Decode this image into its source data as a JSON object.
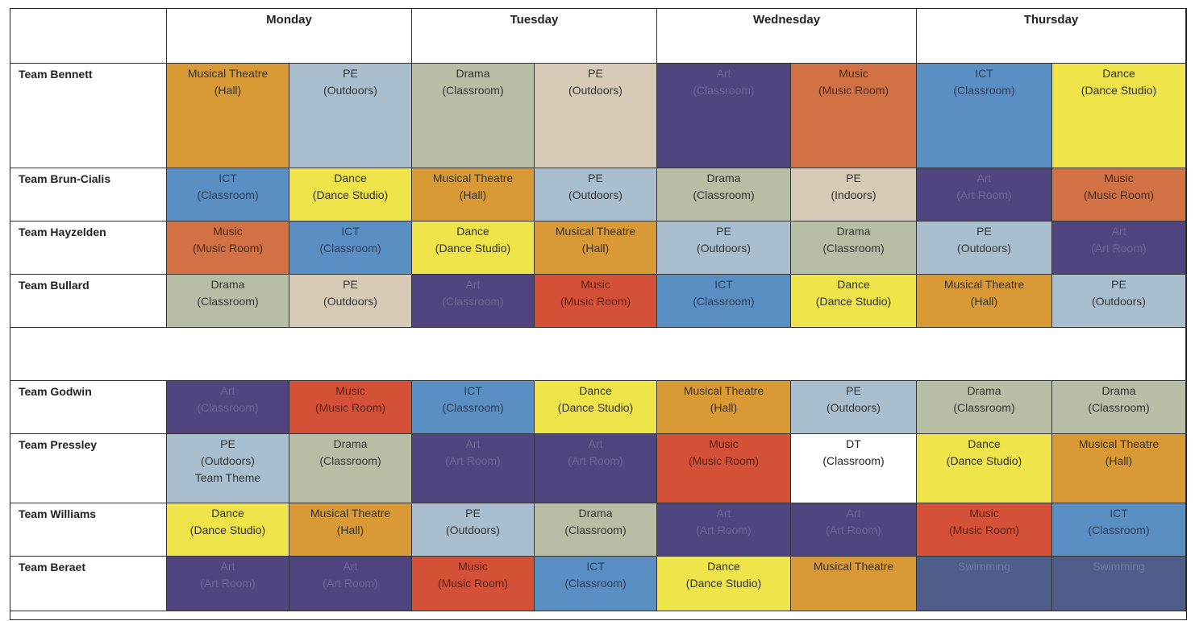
{
  "days": [
    "Monday",
    "Tuesday",
    "Wednesday",
    "Thursday"
  ],
  "teams": [
    {
      "name": "Team Bennett",
      "lessons": [
        {
          "lines": [
            "Musical Theatre",
            "(Hall)"
          ],
          "color": "yellow-orange"
        },
        {
          "lines": [
            "PE",
            "(Outdoors)"
          ],
          "color": "light-blue"
        },
        {
          "lines": [
            "Drama",
            "(Classroom)"
          ],
          "color": "sage"
        },
        {
          "lines": [
            "PE",
            "(Outdoors)"
          ],
          "color": "tan"
        },
        {
          "lines": [
            "Art",
            "(Classroom)"
          ],
          "color": "purple"
        },
        {
          "lines": [
            "Music",
            "(Music Room)"
          ],
          "color": "rust"
        },
        {
          "lines": [
            "ICT",
            "(Classroom)"
          ],
          "color": "blue"
        },
        {
          "lines": [
            "Dance",
            "(Dance Studio)"
          ],
          "color": "yellow"
        }
      ]
    },
    {
      "name": "Team Brun-Cialis",
      "lessons": [
        {
          "lines": [
            "ICT",
            "(Classroom)"
          ],
          "color": "blue"
        },
        {
          "lines": [
            "Dance",
            "(Dance Studio)"
          ],
          "color": "yellow"
        },
        {
          "lines": [
            "Musical Theatre",
            "(Hall)"
          ],
          "color": "yellow-orange"
        },
        {
          "lines": [
            "PE",
            "(Outdoors)"
          ],
          "color": "light-blue"
        },
        {
          "lines": [
            "Drama",
            "(Classroom)"
          ],
          "color": "sage"
        },
        {
          "lines": [
            "PE",
            "(Indoors)"
          ],
          "color": "tan"
        },
        {
          "lines": [
            "Art",
            "(Art Room)"
          ],
          "color": "purple"
        },
        {
          "lines": [
            "Music",
            "(Music Room)"
          ],
          "color": "rust"
        }
      ]
    },
    {
      "name": "Team Hayzelden",
      "lessons": [
        {
          "lines": [
            "Music",
            "(Music Room)"
          ],
          "color": "rust"
        },
        {
          "lines": [
            "ICT",
            "(Classroom)"
          ],
          "color": "blue"
        },
        {
          "lines": [
            "Dance",
            "(Dance Studio)"
          ],
          "color": "yellow"
        },
        {
          "lines": [
            "Musical Theatre",
            "(Hall)"
          ],
          "color": "yellow-orange"
        },
        {
          "lines": [
            "PE",
            "(Outdoors)"
          ],
          "color": "light-blue"
        },
        {
          "lines": [
            "Drama",
            "(Classroom)"
          ],
          "color": "sage"
        },
        {
          "lines": [
            "PE",
            "(Outdoors)"
          ],
          "color": "light-blue"
        },
        {
          "lines": [
            "Art",
            "(Art Room)"
          ],
          "color": "purple"
        }
      ]
    },
    {
      "name": "Team Bullard",
      "lessons": [
        {
          "lines": [
            "Drama",
            "(Classroom)"
          ],
          "color": "sage"
        },
        {
          "lines": [
            "PE",
            "(Outdoors)"
          ],
          "color": "tan"
        },
        {
          "lines": [
            "Art",
            "(Classroom)"
          ],
          "color": "purple"
        },
        {
          "lines": [
            "Music",
            "(Music Room)"
          ],
          "color": "red"
        },
        {
          "lines": [
            "ICT",
            "(Classroom)"
          ],
          "color": "blue"
        },
        {
          "lines": [
            "Dance",
            "(Dance Studio)"
          ],
          "color": "yellow"
        },
        {
          "lines": [
            "Musical Theatre",
            "(Hall)"
          ],
          "color": "yellow-orange"
        },
        {
          "lines": [
            "PE",
            "(Outdoors)"
          ],
          "color": "light-blue"
        }
      ]
    },
    {
      "name": "Team Godwin",
      "lessons": [
        {
          "lines": [
            "Art",
            "(Classroom)"
          ],
          "color": "purple"
        },
        {
          "lines": [
            "Music",
            "(Music Room)"
          ],
          "color": "red"
        },
        {
          "lines": [
            "ICT",
            "(Classroom)"
          ],
          "color": "blue"
        },
        {
          "lines": [
            "Dance",
            "(Dance Studio)"
          ],
          "color": "yellow"
        },
        {
          "lines": [
            "Musical Theatre",
            "(Hall)"
          ],
          "color": "yellow-orange"
        },
        {
          "lines": [
            "PE",
            "(Outdoors)"
          ],
          "color": "light-blue"
        },
        {
          "lines": [
            "Drama",
            "(Classroom)"
          ],
          "color": "sage"
        },
        {
          "lines": [
            "Drama",
            "(Classroom)"
          ],
          "color": "sage"
        }
      ]
    },
    {
      "name": "Team Pressley",
      "lessons": [
        {
          "lines": [
            "PE",
            "(Outdoors)",
            "Team Theme"
          ],
          "color": "light-blue"
        },
        {
          "lines": [
            "Drama",
            "(Classroom)"
          ],
          "color": "sage"
        },
        {
          "lines": [
            "Art",
            "(Art Room)"
          ],
          "color": "purple"
        },
        {
          "lines": [
            "Art",
            "(Art Room)"
          ],
          "color": "purple"
        },
        {
          "lines": [
            "Music",
            "(Music Room)"
          ],
          "color": "red"
        },
        {
          "lines": [
            "DT",
            "(Classroom)"
          ],
          "color": "white"
        },
        {
          "lines": [
            "Dance",
            "(Dance Studio)"
          ],
          "color": "yellow"
        },
        {
          "lines": [
            "Musical Theatre",
            "(Hall)"
          ],
          "color": "yellow-orange"
        }
      ]
    },
    {
      "name": "Team Williams",
      "lessons": [
        {
          "lines": [
            "Dance",
            "(Dance Studio)"
          ],
          "color": "yellow"
        },
        {
          "lines": [
            "Musical Theatre",
            "(Hall)"
          ],
          "color": "yellow-orange"
        },
        {
          "lines": [
            "PE",
            "(Outdoors)"
          ],
          "color": "light-blue"
        },
        {
          "lines": [
            "Drama",
            "(Classroom)"
          ],
          "color": "sage"
        },
        {
          "lines": [
            "Art",
            "(Art Room)"
          ],
          "color": "purple"
        },
        {
          "lines": [
            "Art",
            "(Art Room)"
          ],
          "color": "purple"
        },
        {
          "lines": [
            "Music",
            "(Music Room)"
          ],
          "color": "red"
        },
        {
          "lines": [
            "ICT",
            "(Classroom)"
          ],
          "color": "blue"
        }
      ]
    },
    {
      "name": "Team Beraet",
      "lessons": [
        {
          "lines": [
            "Art",
            "(Art Room)"
          ],
          "color": "purple"
        },
        {
          "lines": [
            "Art",
            "(Art Room)"
          ],
          "color": "purple"
        },
        {
          "lines": [
            "Music",
            "(Music Room)"
          ],
          "color": "red"
        },
        {
          "lines": [
            "ICT",
            "(Classroom)"
          ],
          "color": "blue"
        },
        {
          "lines": [
            "Dance",
            "(Dance Studio)"
          ],
          "color": "yellow"
        },
        {
          "lines": [
            "Musical Theatre"
          ],
          "color": "yellow-orange"
        },
        {
          "lines": [
            "Swimming"
          ],
          "color": "slate"
        },
        {
          "lines": [
            "Swimming"
          ],
          "color": "slate"
        }
      ]
    }
  ]
}
